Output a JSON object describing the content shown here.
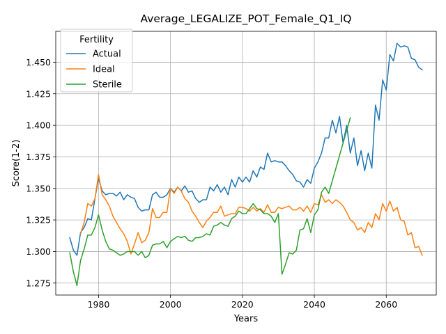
{
  "chart_data": {
    "type": "line",
    "title": "Average_LEGALIZE_POT_Female_Q1_IQ",
    "xlabel": "Years",
    "ylabel": "Score(1-2)",
    "xlim": [
      1968.1,
      2073.9
    ],
    "ylim": [
      1.2655,
      1.4745
    ],
    "xticks": [
      1980,
      2000,
      2020,
      2040,
      2060
    ],
    "yticks": [
      1.275,
      1.3,
      1.325,
      1.35,
      1.375,
      1.4,
      1.425,
      1.45
    ],
    "ytick_labels": [
      "1.275",
      "1.300",
      "1.325",
      "1.350",
      "1.375",
      "1.400",
      "1.425",
      "1.450"
    ],
    "grid": true,
    "legend": {
      "title": "Fertility",
      "placement": "top-left"
    },
    "series": [
      {
        "name": "Actual",
        "color": "#1f77b4",
        "x_start": 1972,
        "values": [
          1.311,
          1.301,
          1.297,
          1.315,
          1.319,
          1.326,
          1.325,
          1.342,
          1.358,
          1.348,
          1.345,
          1.346,
          1.346,
          1.344,
          1.347,
          1.341,
          1.345,
          1.343,
          1.342,
          1.335,
          1.332,
          1.333,
          1.333,
          1.345,
          1.347,
          1.343,
          1.343,
          1.345,
          1.35,
          1.347,
          1.351,
          1.348,
          1.352,
          1.347,
          1.348,
          1.342,
          1.339,
          1.341,
          1.341,
          1.351,
          1.348,
          1.353,
          1.347,
          1.351,
          1.345,
          1.357,
          1.351,
          1.359,
          1.355,
          1.359,
          1.355,
          1.364,
          1.359,
          1.367,
          1.365,
          1.378,
          1.371,
          1.372,
          1.371,
          1.371,
          1.368,
          1.364,
          1.361,
          1.356,
          1.355,
          1.351,
          1.357,
          1.354,
          1.366,
          1.371,
          1.378,
          1.39,
          1.39,
          1.404,
          1.394,
          1.407,
          1.386,
          1.4,
          1.378,
          1.39,
          1.368,
          1.38,
          1.364,
          1.378,
          1.366,
          1.416,
          1.404,
          1.436,
          1.428,
          1.456,
          1.451,
          1.465,
          1.462,
          1.463,
          1.462,
          1.453,
          1.452,
          1.446,
          1.444
        ]
      },
      {
        "name": "Ideal",
        "color": "#ff7f0e",
        "x_start": 1975,
        "values": [
          1.314,
          1.323,
          1.338,
          1.336,
          1.342,
          1.361,
          1.345,
          1.341,
          1.336,
          1.328,
          1.323,
          1.318,
          1.314,
          1.308,
          1.298,
          1.306,
          1.315,
          1.307,
          1.309,
          1.315,
          1.334,
          1.327,
          1.327,
          1.331,
          1.331,
          1.35,
          1.346,
          1.351,
          1.348,
          1.342,
          1.339,
          1.332,
          1.328,
          1.323,
          1.319,
          1.324,
          1.327,
          1.331,
          1.331,
          1.336,
          1.328,
          1.329,
          1.33,
          1.33,
          1.335,
          1.335,
          1.334,
          1.332,
          1.335,
          1.332,
          1.334,
          1.331,
          1.337,
          1.331,
          1.331,
          1.335,
          1.334,
          1.335,
          1.336,
          1.333,
          1.333,
          1.335,
          1.332,
          1.336,
          1.331,
          1.338,
          1.337,
          1.345,
          1.339,
          1.341,
          1.338,
          1.341,
          1.339,
          1.336,
          1.331,
          1.325,
          1.323,
          1.317,
          1.319,
          1.315,
          1.323,
          1.319,
          1.33,
          1.325,
          1.338,
          1.332,
          1.34,
          1.332,
          1.335,
          1.325,
          1.324,
          1.313,
          1.315,
          1.303,
          1.304,
          1.297
        ]
      },
      {
        "name": "Sterile",
        "color": "#2ca02c",
        "x_start": 1972,
        "values": [
          1.299,
          1.284,
          1.273,
          1.293,
          1.302,
          1.313,
          1.313,
          1.319,
          1.329,
          1.317,
          1.308,
          1.302,
          1.301,
          1.299,
          1.297,
          1.298,
          1.3,
          1.3,
          1.3,
          1.297,
          1.3,
          1.295,
          1.297,
          1.305,
          1.306,
          1.306,
          1.308,
          1.303,
          1.308,
          1.31,
          1.312,
          1.311,
          1.312,
          1.309,
          1.308,
          1.311,
          1.311,
          1.312,
          1.314,
          1.313,
          1.32,
          1.321,
          1.323,
          1.321,
          1.32,
          1.326,
          1.328,
          1.332,
          1.33,
          1.33,
          1.334,
          1.338,
          1.334,
          1.333,
          1.33,
          1.33,
          1.328,
          1.323,
          1.33,
          1.282,
          1.29,
          1.299,
          1.298,
          1.301,
          1.317,
          1.318,
          1.326,
          1.315,
          1.329,
          1.333,
          1.347,
          1.351,
          1.346,
          1.356,
          1.366,
          1.376,
          1.386,
          1.396,
          1.406
        ]
      }
    ]
  }
}
